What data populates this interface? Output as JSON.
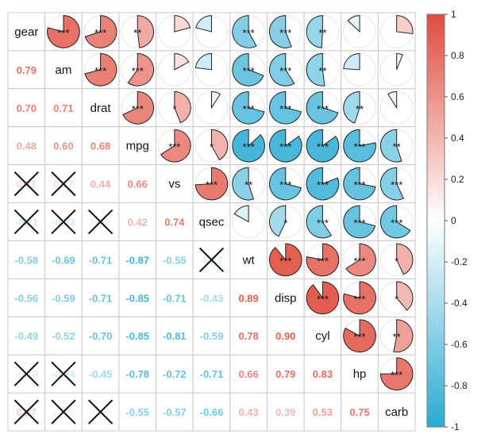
{
  "chart_data": {
    "type": "heatmap",
    "variables": [
      "gear",
      "am",
      "drat",
      "mpg",
      "vs",
      "qsec",
      "wt",
      "disp",
      "cyl",
      "hp",
      "carb"
    ],
    "upper_method": "pie",
    "lower_method": "number",
    "insignificant_marker": "cross",
    "matrix": [
      [
        1.0,
        0.79,
        0.7,
        0.48,
        0.21,
        -0.21,
        -0.58,
        -0.56,
        -0.49,
        -0.13,
        0.27
      ],
      [
        0.79,
        1.0,
        0.71,
        0.6,
        0.17,
        -0.23,
        -0.69,
        -0.59,
        -0.52,
        -0.24,
        0.06
      ],
      [
        0.7,
        0.71,
        1.0,
        0.68,
        0.44,
        0.09,
        -0.71,
        -0.71,
        -0.7,
        -0.45,
        -0.09
      ],
      [
        0.48,
        0.6,
        0.68,
        1.0,
        0.66,
        0.42,
        -0.87,
        -0.85,
        -0.85,
        -0.78,
        -0.55
      ],
      [
        0.21,
        0.17,
        0.44,
        0.66,
        1.0,
        0.74,
        -0.55,
        -0.71,
        -0.81,
        -0.72,
        -0.57
      ],
      [
        -0.21,
        -0.23,
        0.09,
        0.42,
        0.74,
        1.0,
        -0.17,
        -0.43,
        -0.59,
        -0.71,
        -0.66
      ],
      [
        -0.58,
        -0.69,
        -0.71,
        -0.87,
        -0.55,
        -0.17,
        1.0,
        0.89,
        0.78,
        0.66,
        0.43
      ],
      [
        -0.56,
        -0.59,
        -0.71,
        -0.85,
        -0.71,
        -0.43,
        0.89,
        1.0,
        0.9,
        0.79,
        0.39
      ],
      [
        -0.49,
        -0.52,
        -0.7,
        -0.85,
        -0.81,
        -0.59,
        0.78,
        0.9,
        1.0,
        0.83,
        0.53
      ],
      [
        -0.13,
        -0.24,
        -0.45,
        -0.78,
        -0.72,
        -0.71,
        0.66,
        0.79,
        0.83,
        1.0,
        0.75
      ],
      [
        0.27,
        0.06,
        -0.09,
        -0.55,
        -0.57,
        -0.66,
        0.43,
        0.39,
        0.53,
        0.75,
        1.0
      ]
    ],
    "significance": [
      [
        "",
        "***",
        "***",
        "**",
        "",
        "",
        "***",
        "***",
        "**",
        "",
        ""
      ],
      [
        "***",
        "",
        "***",
        "***",
        "",
        "",
        "***",
        "***",
        "**",
        "",
        ""
      ],
      [
        "***",
        "***",
        "",
        "***",
        "*",
        "",
        "***",
        "***",
        "***",
        "**",
        ""
      ],
      [
        "**",
        "***",
        "***",
        "",
        "***",
        "*",
        "***",
        "***",
        "***",
        "***",
        "**"
      ],
      [
        "",
        "",
        "*",
        "***",
        "",
        "***",
        "**",
        "***",
        "***",
        "***",
        "***"
      ],
      [
        "",
        "",
        "",
        "*",
        "***",
        "",
        "",
        "*",
        "***",
        "***",
        "***"
      ],
      [
        "***",
        "***",
        "***",
        "***",
        "**",
        "",
        "",
        "***",
        "***",
        "***",
        "*"
      ],
      [
        "***",
        "***",
        "***",
        "***",
        "***",
        "*",
        "***",
        "",
        "***",
        "***",
        "*"
      ],
      [
        "**",
        "**",
        "***",
        "***",
        "***",
        "***",
        "***",
        "***",
        "",
        "***",
        "**"
      ],
      [
        "",
        "",
        "**",
        "***",
        "***",
        "***",
        "***",
        "***",
        "***",
        "",
        "***"
      ],
      [
        "",
        "",
        "",
        "**",
        "***",
        "***",
        "*",
        "*",
        "**",
        "***",
        ""
      ]
    ],
    "colorbar": {
      "min": -1,
      "max": 1,
      "ticks": [
        "1",
        "0.8",
        "0.6",
        "0.4",
        "0.2",
        "0",
        "-0.2",
        "-0.4",
        "-0.6",
        "-0.8",
        "-1"
      ],
      "negative_color": "#2aaad3",
      "zero_color": "#ffffff",
      "positive_color": "#e04b3d"
    }
  }
}
